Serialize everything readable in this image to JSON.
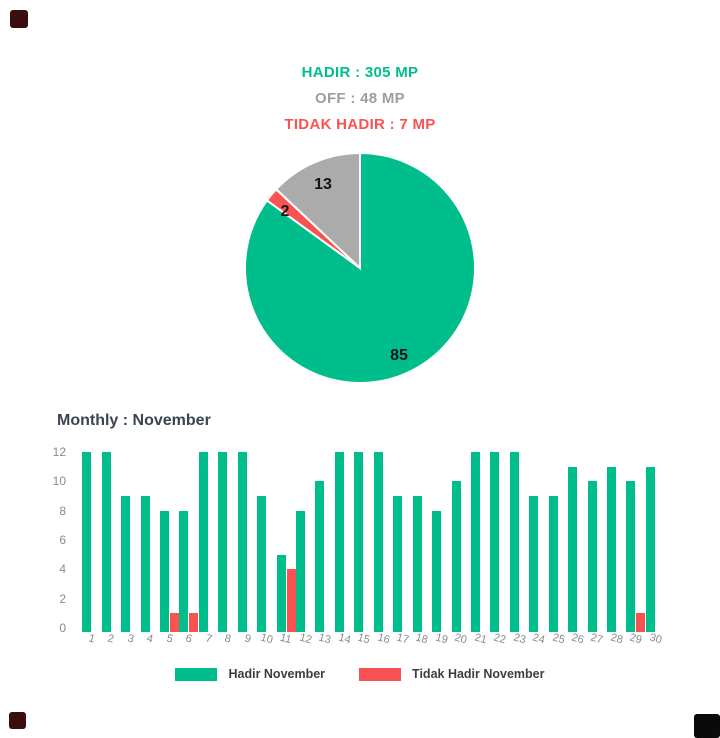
{
  "header": {
    "hadir": "HADIR : 305 MP",
    "off": "OFF : 48 MP",
    "tidak_hadir": "TIDAK HADIR : 7 MP"
  },
  "colors": {
    "green": "#00BE8C",
    "red": "#FA5252",
    "gray": "#ABABAB",
    "off_text": "#9E9E9E",
    "title_text": "#3D4451",
    "axis_text": "#8A8A8A",
    "legend_text": "#3C3C44",
    "pie_label_text": "#141414"
  },
  "chart_data": [
    {
      "type": "pie",
      "labels": [
        "Hadir",
        "Tidak Hadir",
        "Off"
      ],
      "values": [
        85,
        2,
        13
      ],
      "colors": [
        "#00BE8C",
        "#FA5252",
        "#ABABAB"
      ],
      "data_labels": [
        "85",
        "2",
        "13"
      ],
      "start_angle": "top",
      "direction": "clockwise"
    },
    {
      "type": "bar",
      "title": "Monthly : November",
      "categories": [
        1,
        2,
        3,
        4,
        5,
        6,
        7,
        8,
        9,
        10,
        11,
        12,
        13,
        14,
        15,
        16,
        17,
        18,
        19,
        20,
        21,
        22,
        23,
        24,
        25,
        26,
        27,
        28,
        29,
        30
      ],
      "series": [
        {
          "name": "Hadir November",
          "color": "#00BE8C",
          "values": [
            12,
            12,
            9,
            9,
            8,
            8,
            12,
            12,
            12,
            9,
            5,
            8,
            10,
            12,
            12,
            12,
            9,
            9,
            8,
            10,
            12,
            12,
            12,
            9,
            9,
            11,
            10,
            11,
            10,
            11
          ]
        },
        {
          "name": "Tidak Hadir November",
          "color": "#FA5252",
          "values": [
            0,
            0,
            0,
            0,
            1,
            1,
            0,
            0,
            0,
            0,
            4,
            0,
            0,
            0,
            0,
            0,
            0,
            0,
            0,
            0,
            0,
            0,
            0,
            0,
            0,
            0,
            0,
            0,
            1,
            0
          ]
        }
      ],
      "ylim": [
        0,
        12
      ],
      "yticks": [
        0,
        2,
        4,
        6,
        8,
        10,
        12
      ],
      "grid": false,
      "legend_position": "bottom"
    }
  ]
}
